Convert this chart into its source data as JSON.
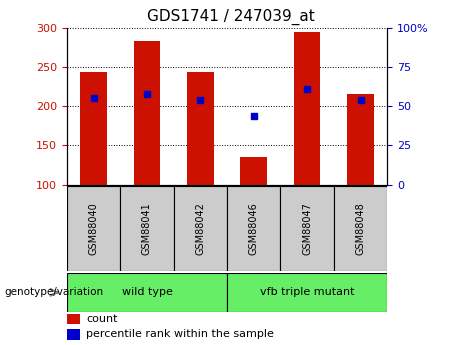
{
  "title": "GDS1741 / 247039_at",
  "samples": [
    "GSM88040",
    "GSM88041",
    "GSM88042",
    "GSM88046",
    "GSM88047",
    "GSM88048"
  ],
  "counts": [
    243,
    283,
    243,
    135,
    295,
    215
  ],
  "percentile_ranks": [
    210,
    215,
    208,
    188,
    222,
    208
  ],
  "y_min": 100,
  "y_max": 300,
  "y_ticks_left": [
    100,
    150,
    200,
    250,
    300
  ],
  "y_ticks_right": [
    0,
    25,
    50,
    75,
    100
  ],
  "bar_color": "#cc1100",
  "dot_color": "#0000cc",
  "bar_width": 0.5,
  "genotype_label": "genotype/variation",
  "legend_count_label": "count",
  "legend_percentile_label": "percentile rank within the sample",
  "background_color": "#ffffff",
  "tick_label_color_left": "#cc1100",
  "tick_label_color_right": "#0000cc",
  "sample_box_color": "#cccccc",
  "group_box_color": "#66ee66",
  "title_fontsize": 11,
  "axis_fontsize": 8,
  "legend_fontsize": 8
}
